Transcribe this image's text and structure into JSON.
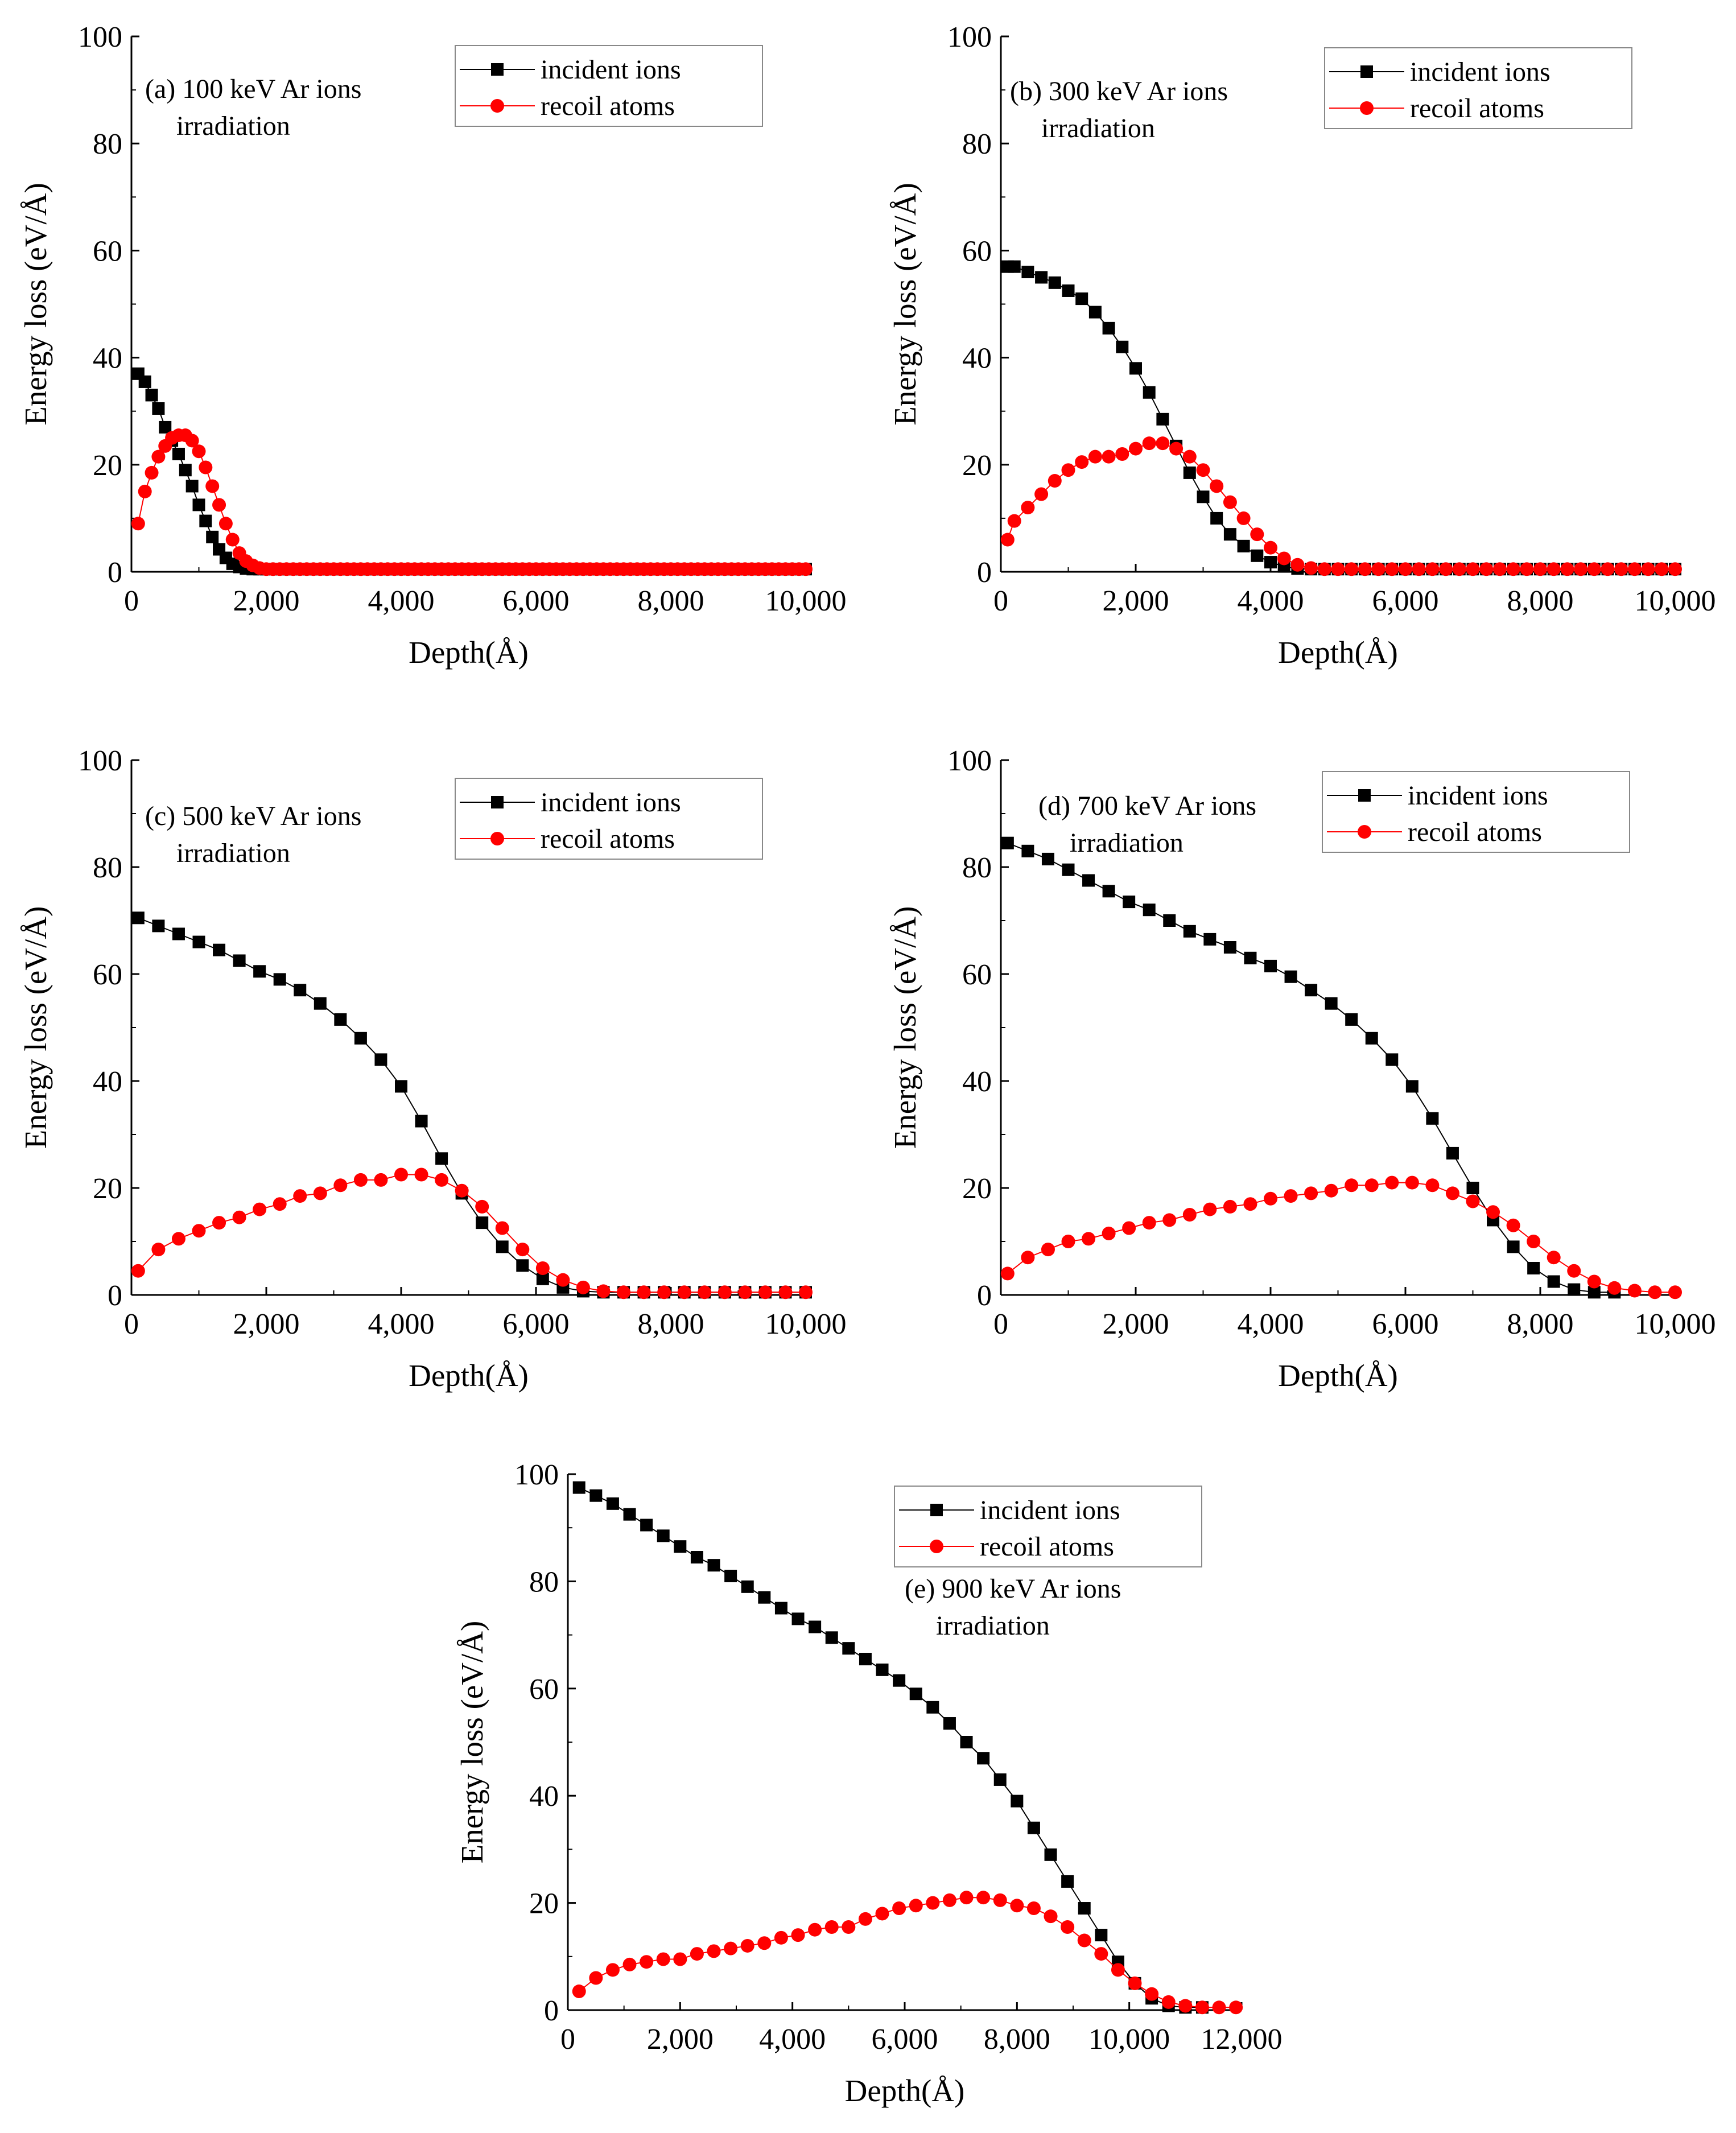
{
  "chart_data": [
    {
      "type": "scatter",
      "panel_label": [
        "(a) 100 keV Ar ions",
        "irradiation"
      ],
      "xlabel": "Depth(Å)",
      "ylabel": "Energy loss (eV/Å)",
      "xlim": [
        0,
        10000
      ],
      "ylim": [
        0,
        100
      ],
      "xticks": [
        "0",
        "2,000",
        "4,000",
        "6,000",
        "8,000",
        "10,000"
      ],
      "yticks": [
        "0",
        "20",
        "40",
        "60",
        "80",
        "100"
      ],
      "legend_position": "top-right",
      "series": [
        {
          "name": "incident ions",
          "color": "#000000",
          "marker": "square",
          "x": [
            100,
            200,
            300,
            400,
            500,
            600,
            700,
            800,
            900,
            1000,
            1100,
            1200,
            1300,
            1400,
            1500,
            1600,
            1700,
            1800,
            1900,
            2000
          ],
          "y": [
            37,
            35.5,
            33,
            30.5,
            27,
            24.5,
            22,
            19,
            16,
            12.5,
            9.5,
            6.5,
            4.2,
            2.6,
            1.5,
            0.9,
            0.6,
            0.5,
            0.5,
            0.5
          ]
        },
        {
          "name": "recoil atoms",
          "color": "#ff0000",
          "marker": "circle",
          "x": [
            100,
            200,
            300,
            400,
            500,
            600,
            700,
            800,
            900,
            1000,
            1100,
            1200,
            1300,
            1400,
            1500,
            1600,
            1700,
            1800,
            1900,
            2000
          ],
          "y": [
            9,
            15,
            18.5,
            21.5,
            23.5,
            25,
            25.5,
            25.5,
            24.5,
            22.5,
            19.5,
            16,
            12.5,
            9,
            6,
            3.5,
            2,
            1.2,
            0.7,
            0.5
          ]
        }
      ],
      "series_tail": {
        "from": 2100,
        "to": 10000,
        "step": 100,
        "value": 0.5
      }
    },
    {
      "type": "scatter",
      "panel_label": [
        "(b) 300 keV Ar ions",
        "irradiation"
      ],
      "xlabel": "Depth(Å)",
      "ylabel": "Energy loss (eV/Å)",
      "xlim": [
        0,
        10000
      ],
      "ylim": [
        0,
        100
      ],
      "xticks": [
        "0",
        "2,000",
        "4,000",
        "6,000",
        "8,000",
        "10,000"
      ],
      "yticks": [
        "0",
        "20",
        "40",
        "60",
        "80",
        "100"
      ],
      "legend_position": "top-right",
      "series": [
        {
          "name": "incident ions",
          "color": "#000000",
          "marker": "square",
          "x": [
            100,
            200,
            400,
            600,
            800,
            1000,
            1200,
            1400,
            1600,
            1800,
            2000,
            2200,
            2400,
            2600,
            2800,
            3000,
            3200,
            3400,
            3600,
            3800,
            4000,
            4200,
            4400,
            4600,
            4800,
            5000
          ],
          "y": [
            57,
            57,
            56,
            55,
            54,
            52.5,
            51,
            48.5,
            45.5,
            42,
            38,
            33.5,
            28.5,
            23.5,
            18.5,
            14,
            10,
            7,
            4.8,
            3,
            1.8,
            1,
            0.6,
            0.5,
            0.5,
            0.5
          ]
        },
        {
          "name": "recoil atoms",
          "color": "#ff0000",
          "marker": "circle",
          "x": [
            100,
            200,
            400,
            600,
            800,
            1000,
            1200,
            1400,
            1600,
            1800,
            2000,
            2200,
            2400,
            2600,
            2800,
            3000,
            3200,
            3400,
            3600,
            3800,
            4000,
            4200,
            4400,
            4600,
            4800,
            5000
          ],
          "y": [
            6,
            9.5,
            12,
            14.5,
            17,
            19,
            20.5,
            21.5,
            21.5,
            22,
            23,
            24,
            24,
            23,
            21.5,
            19,
            16,
            13,
            10,
            7,
            4.5,
            2.5,
            1.3,
            0.7,
            0.5,
            0.5
          ]
        }
      ],
      "series_tail": {
        "from": 5200,
        "to": 10000,
        "step": 200,
        "value": 0.5
      }
    },
    {
      "type": "scatter",
      "panel_label": [
        "(c) 500 keV Ar ions",
        "irradiation"
      ],
      "xlabel": "Depth(Å)",
      "ylabel": "Energy loss (eV/Å)",
      "xlim": [
        0,
        10000
      ],
      "ylim": [
        0,
        100
      ],
      "xticks": [
        "0",
        "2,000",
        "4,000",
        "6,000",
        "8,000",
        "10,000"
      ],
      "yticks": [
        "0",
        "20",
        "40",
        "60",
        "80",
        "100"
      ],
      "legend_position": "top-right",
      "series": [
        {
          "name": "incident ions",
          "color": "#000000",
          "marker": "square",
          "x": [
            100,
            400,
            700,
            1000,
            1300,
            1600,
            1900,
            2200,
            2500,
            2800,
            3100,
            3400,
            3700,
            4000,
            4300,
            4600,
            4900,
            5200,
            5500,
            5800,
            6100,
            6400,
            6700,
            7000,
            7300
          ],
          "y": [
            70.5,
            69,
            67.5,
            66,
            64.5,
            62.5,
            60.5,
            59,
            57,
            54.5,
            51.5,
            48,
            44,
            39,
            32.5,
            25.5,
            19,
            13.5,
            9,
            5.5,
            3,
            1.4,
            0.7,
            0.5,
            0.5
          ]
        },
        {
          "name": "recoil atoms",
          "color": "#ff0000",
          "marker": "circle",
          "x": [
            100,
            400,
            700,
            1000,
            1300,
            1600,
            1900,
            2200,
            2500,
            2800,
            3100,
            3400,
            3700,
            4000,
            4300,
            4600,
            4900,
            5200,
            5500,
            5800,
            6100,
            6400,
            6700,
            7000,
            7300
          ],
          "y": [
            4.5,
            8.5,
            10.5,
            12,
            13.5,
            14.5,
            16,
            17,
            18.5,
            19,
            20.5,
            21.5,
            21.5,
            22.5,
            22.5,
            21.5,
            19.5,
            16.5,
            12.5,
            8.5,
            5,
            2.8,
            1.4,
            0.7,
            0.5
          ]
        }
      ],
      "series_tail": {
        "from": 7600,
        "to": 10000,
        "step": 300,
        "value": 0.5
      }
    },
    {
      "type": "scatter",
      "panel_label": [
        "(d) 700 keV Ar ions",
        "irradiation"
      ],
      "xlabel": "Depth(Å)",
      "ylabel": "Energy loss (eV/Å)",
      "xlim": [
        0,
        10000
      ],
      "ylim": [
        0,
        100
      ],
      "xticks": [
        "0",
        "2,000",
        "4,000",
        "6,000",
        "8,000",
        "10,000"
      ],
      "yticks": [
        "0",
        "20",
        "40",
        "60",
        "80",
        "100"
      ],
      "legend_position": "top-right",
      "series": [
        {
          "name": "incident ions",
          "color": "#000000",
          "marker": "square",
          "x": [
            100,
            400,
            700,
            1000,
            1300,
            1600,
            1900,
            2200,
            2500,
            2800,
            3100,
            3400,
            3700,
            4000,
            4300,
            4600,
            4900,
            5200,
            5500,
            5800,
            6100,
            6400,
            6700,
            7000,
            7300,
            7600,
            7900,
            8200,
            8500,
            8800,
            9100
          ],
          "y": [
            84.5,
            83,
            81.5,
            79.5,
            77.5,
            75.5,
            73.5,
            72,
            70,
            68,
            66.5,
            65,
            63,
            61.5,
            59.5,
            57,
            54.5,
            51.5,
            48,
            44,
            39,
            33,
            26.5,
            20,
            14,
            9,
            5,
            2.5,
            1,
            0.5,
            0.5
          ]
        },
        {
          "name": "recoil atoms",
          "color": "#ff0000",
          "marker": "circle",
          "x": [
            100,
            400,
            700,
            1000,
            1300,
            1600,
            1900,
            2200,
            2500,
            2800,
            3100,
            3400,
            3700,
            4000,
            4300,
            4600,
            4900,
            5200,
            5500,
            5800,
            6100,
            6400,
            6700,
            7000,
            7300,
            7600,
            7900,
            8200,
            8500,
            8800,
            9100,
            9400,
            9700,
            10000
          ],
          "y": [
            4,
            7,
            8.5,
            10,
            10.5,
            11.5,
            12.5,
            13.5,
            14,
            15,
            16,
            16.5,
            17,
            18,
            18.5,
            19,
            19.5,
            20.5,
            20.5,
            21,
            21,
            20.5,
            19,
            17.5,
            15.5,
            13,
            10,
            7,
            4.5,
            2.5,
            1.3,
            0.8,
            0.5,
            0.5
          ]
        }
      ]
    },
    {
      "type": "scatter",
      "panel_label": [
        "(e) 900 keV Ar ions",
        "irradiation"
      ],
      "xlabel": "Depth(Å)",
      "ylabel": "Energy loss (eV/Å)",
      "xlim": [
        0,
        12000
      ],
      "ylim": [
        0,
        100
      ],
      "xticks": [
        "0",
        "2,000",
        "4,000",
        "6,000",
        "8,000",
        "10,000",
        "12,000"
      ],
      "yticks": [
        "0",
        "20",
        "40",
        "60",
        "80",
        "100"
      ],
      "legend_position": "top-right",
      "series": [
        {
          "name": "incident ions",
          "color": "#000000",
          "marker": "square",
          "x": [
            200,
            500,
            800,
            1100,
            1400,
            1700,
            2000,
            2300,
            2600,
            2900,
            3200,
            3500,
            3800,
            4100,
            4400,
            4700,
            5000,
            5300,
            5600,
            5900,
            6200,
            6500,
            6800,
            7100,
            7400,
            7700,
            8000,
            8300,
            8600,
            8900,
            9200,
            9500,
            9800,
            10100,
            10400,
            10700,
            11000,
            11300
          ],
          "y": [
            97.5,
            96,
            94.5,
            92.5,
            90.5,
            88.5,
            86.5,
            84.5,
            83,
            81,
            79,
            77,
            75,
            73,
            71.5,
            69.5,
            67.5,
            65.5,
            63.5,
            61.5,
            59,
            56.5,
            53.5,
            50,
            47,
            43,
            39,
            34,
            29,
            24,
            19,
            14,
            9,
            5,
            2.2,
            0.8,
            0.5,
            0.5
          ]
        },
        {
          "name": "recoil atoms",
          "color": "#ff0000",
          "marker": "circle",
          "x": [
            200,
            500,
            800,
            1100,
            1400,
            1700,
            2000,
            2300,
            2600,
            2900,
            3200,
            3500,
            3800,
            4100,
            4400,
            4700,
            5000,
            5300,
            5600,
            5900,
            6200,
            6500,
            6800,
            7100,
            7400,
            7700,
            8000,
            8300,
            8600,
            8900,
            9200,
            9500,
            9800,
            10100,
            10400,
            10700,
            11000,
            11300,
            11600,
            11900
          ],
          "y": [
            3.5,
            6,
            7.5,
            8.5,
            9,
            9.5,
            9.5,
            10.5,
            11,
            11.5,
            12,
            12.5,
            13.5,
            14,
            15,
            15.5,
            15.5,
            17,
            18,
            19,
            19.5,
            20,
            20.5,
            21,
            21,
            20.5,
            19.5,
            19,
            17.5,
            15.5,
            13,
            10.5,
            7.5,
            5,
            3,
            1.5,
            0.8,
            0.5,
            0.5,
            0.5
          ]
        }
      ]
    }
  ]
}
